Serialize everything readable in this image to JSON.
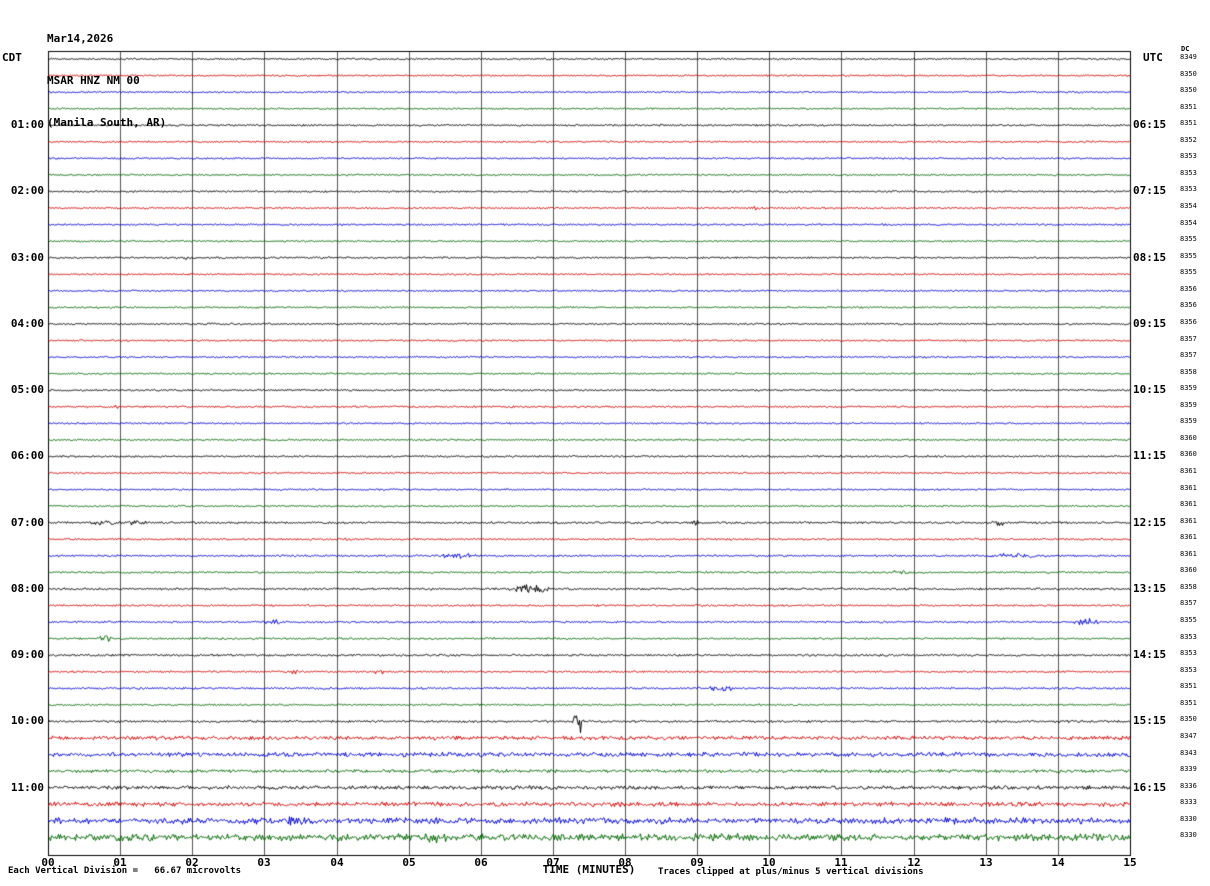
{
  "header": {
    "date": "Mar14,2026",
    "station": "MSAR HNZ NM 00",
    "location": "(Manila South, AR)"
  },
  "axes": {
    "left_tz": "CDT",
    "right_tz": "UTC",
    "dc_label": "DC",
    "x_title": "TIME (MINUTES)",
    "x_ticks": [
      "00",
      "01",
      "02",
      "03",
      "04",
      "05",
      "06",
      "07",
      "08",
      "09",
      "10",
      "11",
      "12",
      "13",
      "14",
      "15"
    ]
  },
  "footer": {
    "left": "Each Vertical Division =   66.67 microvolts",
    "right": "Traces clipped at plus/minus 5 vertical divisions"
  },
  "chart_data": {
    "type": "line",
    "subtype": "helicorder-seismogram",
    "x_range_minutes": [
      0,
      15
    ],
    "minutes_per_line": 15,
    "hours_shown": 12,
    "grid": "vertical lines every minute, outer border box",
    "trace_colors": {
      "black": "#000000",
      "red": "#cc0000",
      "blue": "#0000cc",
      "green": "#006600"
    },
    "rows": [
      {
        "cdt": "",
        "utc": "",
        "dc": 8349,
        "color": "black",
        "noise": 0.55,
        "events": []
      },
      {
        "cdt": "",
        "utc": "",
        "dc": 8350,
        "color": "red",
        "noise": 0.55,
        "events": []
      },
      {
        "cdt": "",
        "utc": "",
        "dc": 8350,
        "color": "blue",
        "noise": 0.55,
        "events": []
      },
      {
        "cdt": "",
        "utc": "",
        "dc": 8351,
        "color": "green",
        "noise": 0.55,
        "events": []
      },
      {
        "cdt": "01:00",
        "utc": "06:15",
        "dc": 8351,
        "color": "black",
        "noise": 0.6,
        "events": []
      },
      {
        "cdt": "",
        "utc": "",
        "dc": 8352,
        "color": "red",
        "noise": 0.55,
        "events": []
      },
      {
        "cdt": "",
        "utc": "",
        "dc": 8353,
        "color": "blue",
        "noise": 0.55,
        "events": []
      },
      {
        "cdt": "",
        "utc": "",
        "dc": 8353,
        "color": "green",
        "noise": 0.55,
        "events": []
      },
      {
        "cdt": "02:00",
        "utc": "07:15",
        "dc": 8353,
        "color": "black",
        "noise": 0.6,
        "events": []
      },
      {
        "cdt": "",
        "utc": "",
        "dc": 8354,
        "color": "red",
        "noise": 0.55,
        "events": [
          {
            "m": 9.7,
            "d": 0.25,
            "a": 1.8
          }
        ]
      },
      {
        "cdt": "",
        "utc": "",
        "dc": 8354,
        "color": "blue",
        "noise": 0.55,
        "events": []
      },
      {
        "cdt": "",
        "utc": "",
        "dc": 8355,
        "color": "green",
        "noise": 0.55,
        "events": []
      },
      {
        "cdt": "03:00",
        "utc": "08:15",
        "dc": 8355,
        "color": "black",
        "noise": 0.6,
        "events": [
          {
            "m": 1.75,
            "d": 0.4,
            "a": 1.2
          }
        ]
      },
      {
        "cdt": "",
        "utc": "",
        "dc": 8355,
        "color": "red",
        "noise": 0.55,
        "events": []
      },
      {
        "cdt": "",
        "utc": "",
        "dc": 8356,
        "color": "blue",
        "noise": 0.55,
        "events": []
      },
      {
        "cdt": "",
        "utc": "",
        "dc": 8356,
        "color": "green",
        "noise": 0.55,
        "events": []
      },
      {
        "cdt": "04:00",
        "utc": "09:15",
        "dc": 8356,
        "color": "black",
        "noise": 0.6,
        "events": []
      },
      {
        "cdt": "",
        "utc": "",
        "dc": 8357,
        "color": "red",
        "noise": 0.55,
        "events": []
      },
      {
        "cdt": "",
        "utc": "",
        "dc": 8357,
        "color": "blue",
        "noise": 0.55,
        "events": []
      },
      {
        "cdt": "",
        "utc": "",
        "dc": 8358,
        "color": "green",
        "noise": 0.55,
        "events": []
      },
      {
        "cdt": "05:00",
        "utc": "10:15",
        "dc": 8359,
        "color": "black",
        "noise": 0.6,
        "events": []
      },
      {
        "cdt": "",
        "utc": "",
        "dc": 8359,
        "color": "red",
        "noise": 0.6,
        "events": [
          {
            "m": 0.8,
            "d": 0.3,
            "a": 1.3
          }
        ]
      },
      {
        "cdt": "",
        "utc": "",
        "dc": 8359,
        "color": "blue",
        "noise": 0.55,
        "events": []
      },
      {
        "cdt": "",
        "utc": "",
        "dc": 8360,
        "color": "green",
        "noise": 0.55,
        "events": []
      },
      {
        "cdt": "06:00",
        "utc": "11:15",
        "dc": 8360,
        "color": "black",
        "noise": 0.6,
        "events": []
      },
      {
        "cdt": "",
        "utc": "",
        "dc": 8361,
        "color": "red",
        "noise": 0.55,
        "events": []
      },
      {
        "cdt": "",
        "utc": "",
        "dc": 8361,
        "color": "blue",
        "noise": 0.55,
        "events": []
      },
      {
        "cdt": "",
        "utc": "",
        "dc": 8361,
        "color": "green",
        "noise": 0.55,
        "events": []
      },
      {
        "cdt": "07:00",
        "utc": "12:15",
        "dc": 8361,
        "color": "black",
        "noise": 0.7,
        "events": [
          {
            "m": 0.5,
            "d": 0.5,
            "a": 2.2
          },
          {
            "m": 0.95,
            "d": 0.5,
            "a": 1.8
          },
          {
            "m": 8.9,
            "d": 0.12,
            "a": 5.0
          },
          {
            "m": 13.0,
            "d": 0.35,
            "a": 2.2
          }
        ]
      },
      {
        "cdt": "",
        "utc": "",
        "dc": 8361,
        "color": "red",
        "noise": 0.6,
        "events": []
      },
      {
        "cdt": "",
        "utc": "",
        "dc": 8361,
        "color": "blue",
        "noise": 0.65,
        "events": [
          {
            "m": 5.35,
            "d": 0.65,
            "a": 2.2
          },
          {
            "m": 12.85,
            "d": 1.2,
            "a": 1.8
          }
        ]
      },
      {
        "cdt": "",
        "utc": "",
        "dc": 8360,
        "color": "green",
        "noise": 0.6,
        "events": [
          {
            "m": 11.6,
            "d": 0.4,
            "a": 1.6
          }
        ]
      },
      {
        "cdt": "08:00",
        "utc": "13:15",
        "dc": 8358,
        "color": "black",
        "noise": 0.7,
        "events": [
          {
            "m": 6.3,
            "d": 0.7,
            "a": 3.2
          }
        ]
      },
      {
        "cdt": "",
        "utc": "",
        "dc": 8357,
        "color": "red",
        "noise": 0.6,
        "events": []
      },
      {
        "cdt": "",
        "utc": "",
        "dc": 8355,
        "color": "blue",
        "noise": 0.65,
        "events": [
          {
            "m": 2.9,
            "d": 0.4,
            "a": 1.8
          },
          {
            "m": 14.15,
            "d": 0.5,
            "a": 3.0
          }
        ]
      },
      {
        "cdt": "",
        "utc": "",
        "dc": 8353,
        "color": "green",
        "noise": 0.6,
        "events": [
          {
            "m": 0.65,
            "d": 0.3,
            "a": 2.6
          }
        ]
      },
      {
        "cdt": "09:00",
        "utc": "14:15",
        "dc": 8353,
        "color": "black",
        "noise": 0.7,
        "events": []
      },
      {
        "cdt": "",
        "utc": "",
        "dc": 8353,
        "color": "red",
        "noise": 0.6,
        "events": [
          {
            "m": 3.3,
            "d": 0.2,
            "a": 3.2
          },
          {
            "m": 4.5,
            "d": 0.18,
            "a": 2.6
          }
        ]
      },
      {
        "cdt": "",
        "utc": "",
        "dc": 8351,
        "color": "blue",
        "noise": 0.65,
        "events": [
          {
            "m": 9.05,
            "d": 0.55,
            "a": 2.4
          }
        ]
      },
      {
        "cdt": "",
        "utc": "",
        "dc": 8351,
        "color": "green",
        "noise": 0.6,
        "events": []
      },
      {
        "cdt": "10:00",
        "utc": "15:15",
        "dc": 8350,
        "color": "black",
        "noise": 0.75,
        "events": [
          {
            "m": 7.25,
            "d": 0.18,
            "a": 11.0
          }
        ]
      },
      {
        "cdt": "",
        "utc": "",
        "dc": 8347,
        "color": "red",
        "noise": 1.3,
        "events": []
      },
      {
        "cdt": "",
        "utc": "",
        "dc": 8343,
        "color": "blue",
        "noise": 1.5,
        "events": []
      },
      {
        "cdt": "",
        "utc": "",
        "dc": 8339,
        "color": "green",
        "noise": 1.1,
        "events": []
      },
      {
        "cdt": "11:00",
        "utc": "16:15",
        "dc": 8336,
        "color": "black",
        "noise": 1.3,
        "events": []
      },
      {
        "cdt": "",
        "utc": "",
        "dc": 8333,
        "color": "red",
        "noise": 1.5,
        "events": []
      },
      {
        "cdt": "",
        "utc": "",
        "dc": 8330,
        "color": "blue",
        "noise": 2.2,
        "events": [
          {
            "m": 3.1,
            "d": 0.7,
            "a": 4.5
          },
          {
            "m": 12.4,
            "d": 1.0,
            "a": 2.5
          }
        ]
      },
      {
        "cdt": "",
        "utc": "",
        "dc": 8330,
        "color": "green",
        "noise": 2.4,
        "events": [
          {
            "m": 4.9,
            "d": 1.0,
            "a": 3.5
          },
          {
            "m": 8.3,
            "d": 3.0,
            "a": 2.5
          }
        ]
      }
    ]
  }
}
